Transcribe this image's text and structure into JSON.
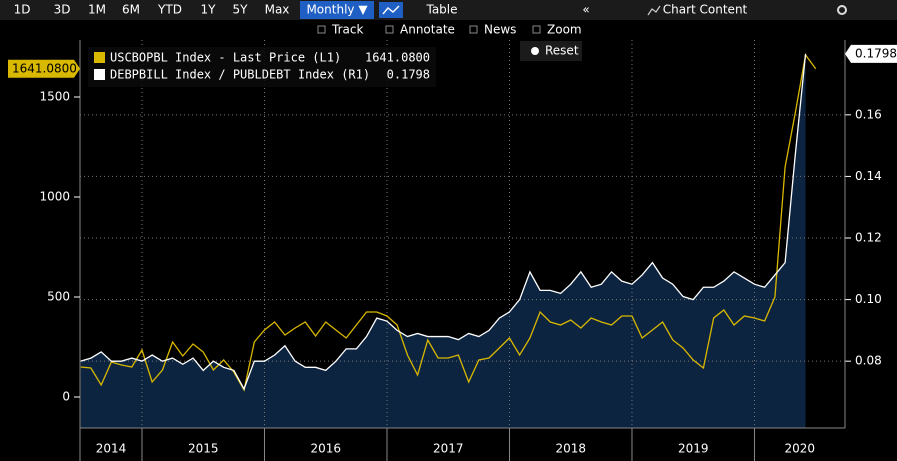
{
  "toolbar": {
    "periods": [
      "1D",
      "3D",
      "1M",
      "6M",
      "YTD",
      "1Y",
      "5Y",
      "Max"
    ],
    "frequency": "Monthly ▼",
    "table": "Table",
    "collapse": "«",
    "chart_content": "Chart Content",
    "tools": [
      "Track",
      "Annotate",
      "News",
      "Zoom"
    ],
    "reset": "Reset"
  },
  "chart_data": {
    "type": "line",
    "x": [
      2014.5,
      2014.583,
      2014.667,
      2014.75,
      2014.833,
      2014.917,
      2015,
      2015.083,
      2015.167,
      2015.25,
      2015.333,
      2015.417,
      2015.5,
      2015.583,
      2015.667,
      2015.75,
      2015.833,
      2015.917,
      2016,
      2016.083,
      2016.167,
      2016.25,
      2016.333,
      2016.417,
      2016.5,
      2016.583,
      2016.667,
      2016.75,
      2016.833,
      2016.917,
      2017,
      2017.083,
      2017.167,
      2017.25,
      2017.333,
      2017.417,
      2017.5,
      2017.583,
      2017.667,
      2017.75,
      2017.833,
      2017.917,
      2018,
      2018.083,
      2018.167,
      2018.25,
      2018.333,
      2018.417,
      2018.5,
      2018.583,
      2018.667,
      2018.75,
      2018.833,
      2018.917,
      2019,
      2019.083,
      2019.167,
      2019.25,
      2019.333,
      2019.417,
      2019.5,
      2019.583,
      2019.667,
      2019.75,
      2019.833,
      2019.917,
      2020,
      2020.083,
      2020.167,
      2020.25,
      2020.333,
      2020.417,
      2020.5
    ],
    "xlim": [
      2014.494,
      2020.739
    ],
    "xticks": [
      2015,
      2016,
      2017,
      2018,
      2019,
      2020
    ],
    "x_labels": [
      2014,
      2015,
      2016,
      2017,
      2018,
      2019,
      2020
    ],
    "ylim": [
      -155,
      1785
    ],
    "yticks": [
      0,
      500,
      1000,
      1500
    ],
    "y2lim": [
      0.0583,
      0.1843
    ],
    "y2ticks": [
      0.08,
      {
        "value": 0.1,
        "label": "0.10"
      },
      0.12,
      0.14,
      0.16
    ],
    "grid": true,
    "series": [
      {
        "name": "USCBOPBL Index - Last Price (L1)",
        "color": "#d9b800",
        "axis": "y",
        "last_value_label": "1641.0800",
        "values": [
          150,
          145,
          60,
          175,
          160,
          150,
          235,
          75,
          135,
          275,
          205,
          265,
          225,
          135,
          185,
          125,
          35,
          275,
          335,
          375,
          310,
          345,
          375,
          305,
          375,
          335,
          295,
          360,
          425,
          425,
          405,
          360,
          210,
          110,
          285,
          195,
          195,
          210,
          75,
          185,
          195,
          245,
          295,
          210,
          295,
          425,
          375,
          360,
          385,
          345,
          395,
          375,
          360,
          405,
          405,
          295,
          335,
          375,
          285,
          245,
          185,
          145,
          395,
          435,
          360,
          405,
          395,
          380,
          500,
          1150,
          1420,
          1710,
          1641.08
        ]
      },
      {
        "name": "DEBPBILL Index / PUBLDEBT Index (R1)",
        "color": "#ffffff",
        "axis": "y2",
        "area": "#0d2440",
        "last_value_label": "0.1798",
        "values": [
          0.08,
          0.081,
          0.083,
          0.08,
          0.08,
          0.081,
          0.08,
          0.082,
          0.08,
          0.081,
          0.079,
          0.081,
          0.077,
          0.08,
          0.078,
          0.077,
          0.071,
          0.08,
          0.08,
          0.082,
          0.085,
          0.08,
          0.078,
          0.078,
          0.077,
          0.08,
          0.084,
          0.084,
          0.088,
          0.094,
          0.093,
          0.09,
          0.088,
          0.089,
          0.088,
          0.088,
          0.088,
          0.087,
          0.089,
          0.088,
          0.09,
          0.094,
          0.096,
          0.1,
          0.109,
          0.103,
          0.103,
          0.102,
          0.105,
          0.109,
          0.104,
          0.105,
          0.109,
          0.106,
          0.105,
          0.108,
          0.112,
          0.107,
          0.105,
          0.101,
          0.1,
          0.104,
          0.104,
          0.106,
          0.109,
          0.107,
          0.105,
          0.104,
          0.108,
          0.112,
          0.147,
          0.1798,
          null
        ]
      }
    ]
  }
}
